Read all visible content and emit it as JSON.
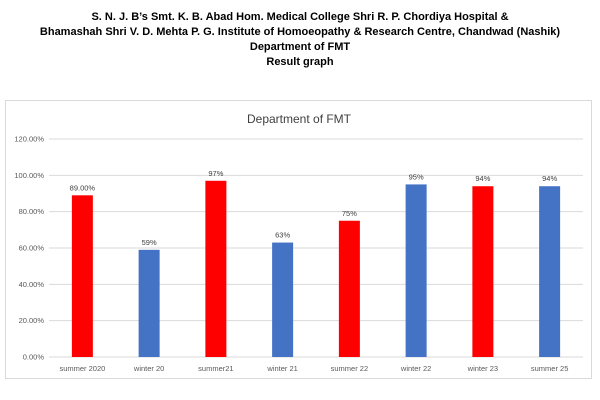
{
  "heading": {
    "line1": "S. N. J. B’s Smt. K. B. Abad Hom. Medical College Shri R. P. Chordiya Hospital &",
    "line2": "Bhamashah Shri V. D. Mehta P. G. Institute of Homoeopathy & Research Centre, Chandwad (Nashik)",
    "line3": "Department of FMT",
    "line4": "Result graph"
  },
  "chart_data": {
    "type": "bar",
    "title": "Department of FMT",
    "xlabel": "",
    "ylabel": "",
    "categories": [
      "summer 2020",
      "winter 20",
      "summer21",
      "winter 21",
      "summer 22",
      "winter 22",
      "winter 23",
      "summer 25"
    ],
    "values": [
      89,
      59,
      97,
      63,
      75,
      95,
      94,
      94
    ],
    "data_labels": [
      "89.00%",
      "59%",
      "97%",
      "63%",
      "75%",
      "95%",
      "94%",
      "94%"
    ],
    "bar_colors": [
      "#ff0000",
      "#4472c4",
      "#ff0000",
      "#4472c4",
      "#ff0000",
      "#4472c4",
      "#ff0000",
      "#4472c4"
    ],
    "ylim": [
      0,
      120
    ],
    "yticks": [
      0,
      20,
      40,
      60,
      80,
      100,
      120
    ],
    "ytick_labels": [
      "0.00%",
      "20.00%",
      "40.00%",
      "60.00%",
      "80.00%",
      "100.00%",
      "120.00%"
    ],
    "grid": true,
    "grid_color": "#d9d9d9",
    "legend": "none"
  }
}
